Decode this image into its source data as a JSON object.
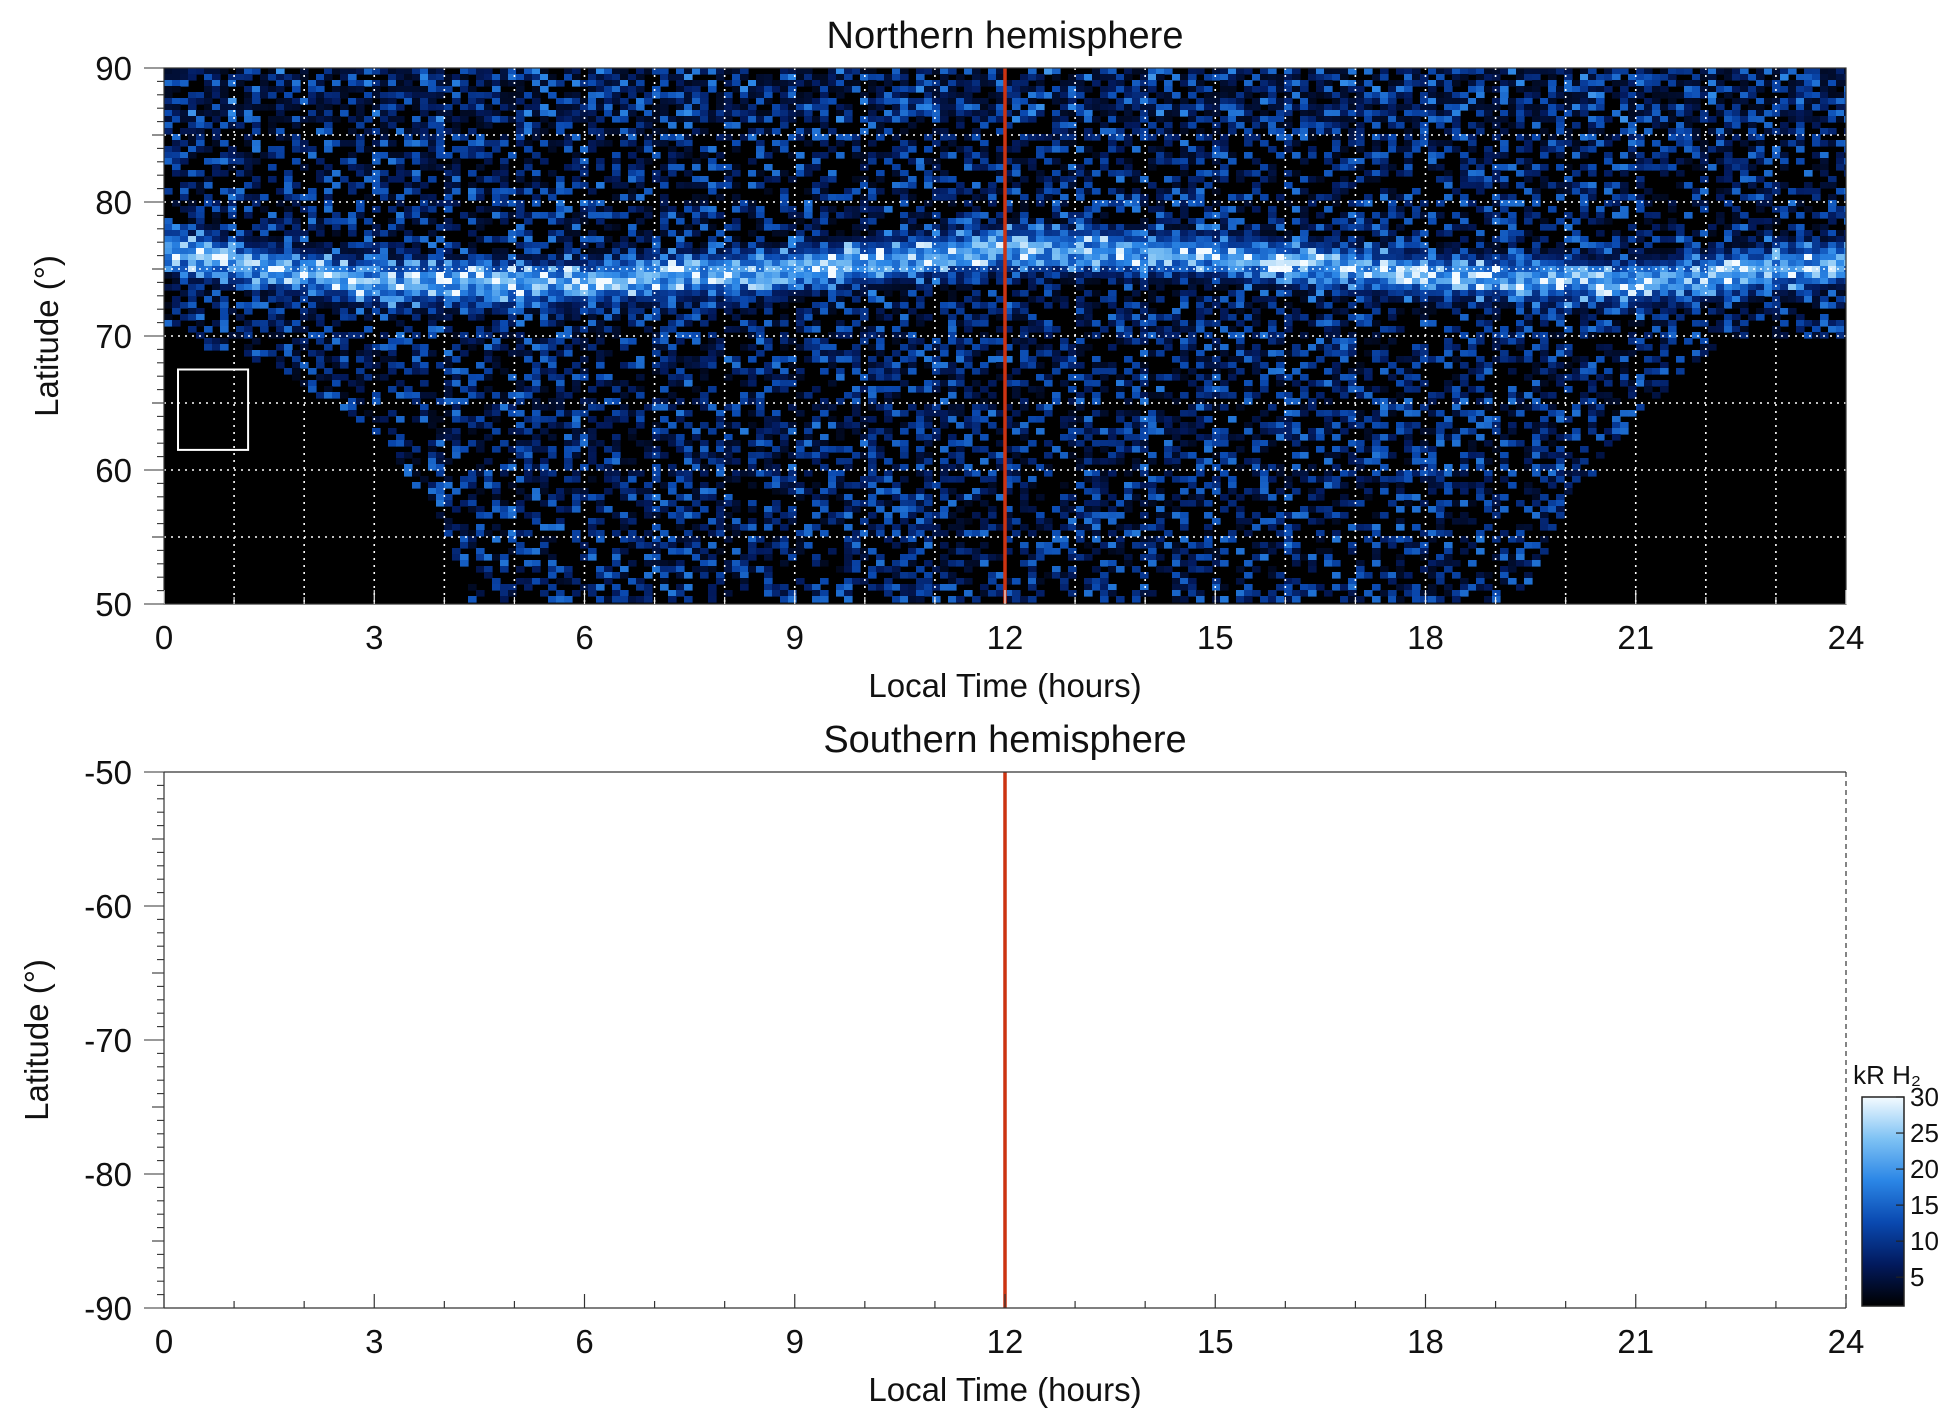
{
  "chart_data": [
    {
      "type": "heatmap",
      "title": "Northern hemisphere",
      "xlabel": "Local Time (hours)",
      "ylabel": "Latitude (°)",
      "xlim": [
        0,
        24
      ],
      "ylim": [
        50,
        90
      ],
      "xticks": [
        "0",
        "3",
        "6",
        "9",
        "12",
        "15",
        "18",
        "21",
        "24"
      ],
      "yticks": [
        "50",
        "60",
        "70",
        "80",
        "90"
      ],
      "grid": true,
      "colormap": "black-blue-white",
      "reference_line": {
        "x": 12,
        "color": "#cc3311"
      },
      "marked_box": {
        "x": [
          0.2,
          1.2
        ],
        "y": [
          61.5,
          67.5
        ]
      },
      "coverage": {
        "full_latitude_above": 70,
        "low_edge": [
          [
            0,
            70
          ],
          [
            1.5,
            68
          ],
          [
            3,
            63
          ],
          [
            4,
            56
          ],
          [
            4.4,
            50
          ],
          [
            19.3,
            50
          ],
          [
            20,
            57
          ],
          [
            21,
            64
          ],
          [
            22.3,
            70
          ],
          [
            24,
            70
          ]
        ]
      },
      "main_oval": [
        [
          0,
          76.5
        ],
        [
          1,
          75.5
        ],
        [
          3,
          74
        ],
        [
          6,
          74
        ],
        [
          9,
          75
        ],
        [
          12,
          76.5
        ],
        [
          15,
          76
        ],
        [
          18,
          74.5
        ],
        [
          21,
          74
        ],
        [
          24,
          75.5
        ]
      ]
    },
    {
      "type": "heatmap",
      "title": "Southern hemisphere",
      "xlabel": "Local Time (hours)",
      "ylabel": "Latitude (°)",
      "xlim": [
        0,
        24
      ],
      "ylim": [
        -90,
        -50
      ],
      "xticks": [
        "0",
        "3",
        "6",
        "9",
        "12",
        "15",
        "18",
        "21",
        "24"
      ],
      "yticks": [
        "-90",
        "-80",
        "-70",
        "-60",
        "-50"
      ],
      "reference_line": {
        "x": 12,
        "color": "#cc3311"
      },
      "no_data": true
    }
  ],
  "colorbar": {
    "label": "kR H₂",
    "ticks": [
      "5",
      "10",
      "15",
      "20",
      "25",
      "30"
    ],
    "range": [
      1,
      30
    ],
    "stops": [
      "#000000",
      "#021a5e",
      "#0a49b0",
      "#2b86e6",
      "#7ec2f4",
      "#f4fbff"
    ]
  }
}
